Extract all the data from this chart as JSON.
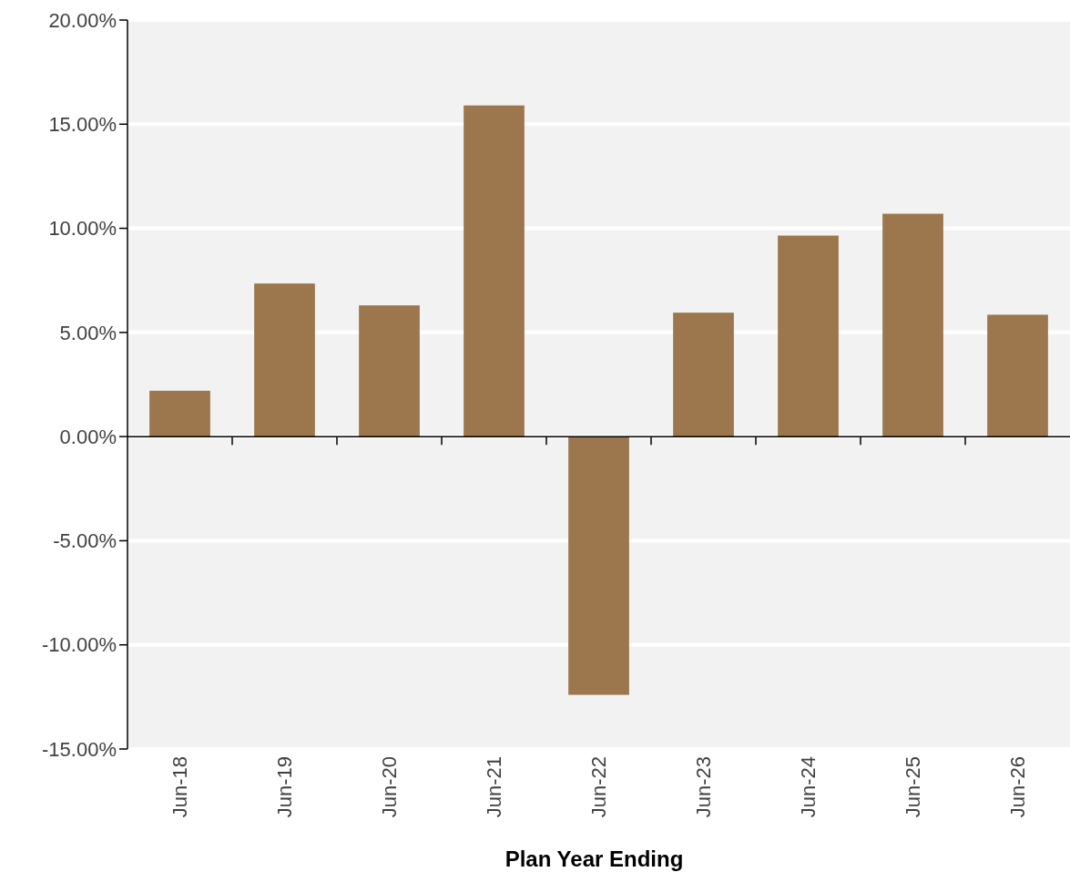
{
  "chart_data": {
    "type": "bar",
    "xlabel": "Plan Year Ending",
    "categories": [
      "Jun-18",
      "Jun-19",
      "Jun-20",
      "Jun-21",
      "Jun-22",
      "Jun-23",
      "Jun-24",
      "Jun-25",
      "Jun-26"
    ],
    "values": [
      2.2,
      7.35,
      6.3,
      15.9,
      -12.4,
      5.95,
      9.65,
      10.7,
      5.85
    ],
    "color": "#9c774d",
    "ylim": [
      -15,
      20
    ],
    "yticks": [
      {
        "value": -15,
        "label": "-15.00%"
      },
      {
        "value": -10,
        "label": "-10.00%"
      },
      {
        "value": -5,
        "label": "-5.00%"
      },
      {
        "value": 0,
        "label": "0.00%"
      },
      {
        "value": 5,
        "label": "5.00%"
      },
      {
        "value": 10,
        "label": "10.00%"
      },
      {
        "value": 15,
        "label": "15.00%"
      },
      {
        "value": 20,
        "label": "20.00%"
      }
    ],
    "grid": "y"
  }
}
